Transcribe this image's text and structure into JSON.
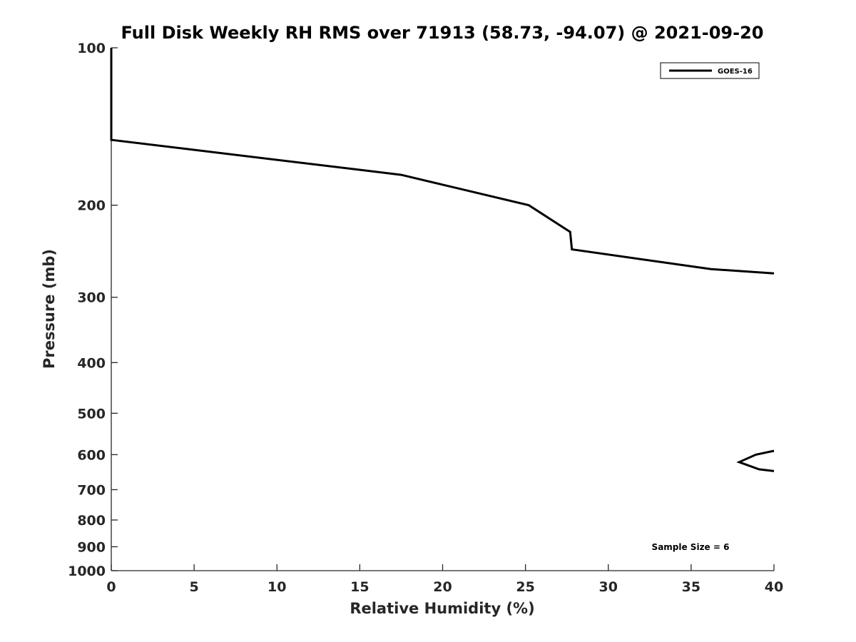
{
  "chart_data": {
    "type": "line",
    "title": "Full Disk Weekly RH RMS over 71913 (58.73, -94.07) @ 2021-09-20",
    "xlabel": "Relative Humidity (%)",
    "ylabel": "Pressure (mb)",
    "xlim": [
      0,
      40
    ],
    "ylim": [
      100,
      1000
    ],
    "yscale": "log",
    "y_reversed": true,
    "grid": false,
    "legend_position": "top-right",
    "x_ticks": [
      "0",
      "5",
      "10",
      "15",
      "20",
      "25",
      "30",
      "35",
      "40"
    ],
    "y_ticks": [
      "100",
      "200",
      "300",
      "400",
      "500",
      "600",
      "700",
      "800",
      "900",
      "1000"
    ],
    "line_color": "#000000",
    "series": [
      {
        "name": "GOES-16",
        "segments": [
          [
            {
              "x": 0.0,
              "y": 100
            },
            {
              "x": 0.0,
              "y": 150
            },
            {
              "x": 17.5,
              "y": 175
            },
            {
              "x": 25.2,
              "y": 200
            },
            {
              "x": 27.7,
              "y": 225
            },
            {
              "x": 27.8,
              "y": 243
            },
            {
              "x": 36.2,
              "y": 265
            },
            {
              "x": 40.0,
              "y": 270
            }
          ],
          [
            {
              "x": 40.0,
              "y": 590
            },
            {
              "x": 38.9,
              "y": 600
            },
            {
              "x": 37.9,
              "y": 620
            },
            {
              "x": 39.1,
              "y": 640
            },
            {
              "x": 40.0,
              "y": 645
            }
          ]
        ]
      }
    ],
    "annotation": "Sample Size = 6"
  }
}
